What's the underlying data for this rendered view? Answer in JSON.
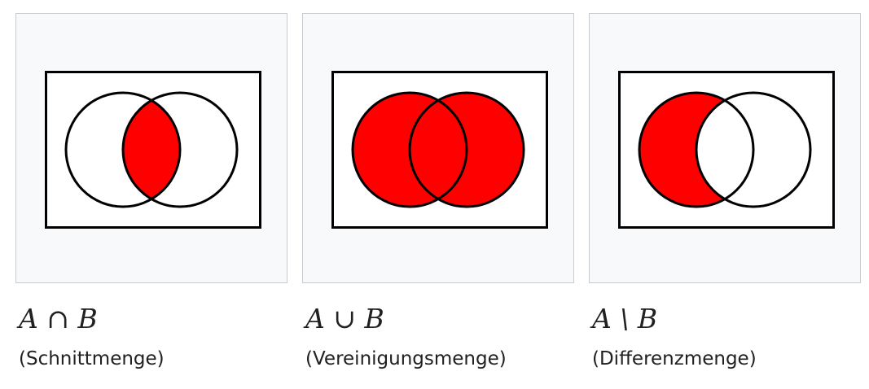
{
  "colors": {
    "fill": "#ff0000",
    "stroke": "#000000",
    "background": "#f8f9fa",
    "border": "#c8ccd1"
  },
  "figures": [
    {
      "formula": "A ∩ B",
      "caption": "(Schnittmenge)",
      "shading": "intersection"
    },
    {
      "formula": "A ∪ B",
      "caption": "(Vereinigungsmenge)",
      "shading": "union"
    },
    {
      "formula": "A \\ B",
      "caption": "(Differenzmenge)",
      "shading": "difference"
    }
  ]
}
